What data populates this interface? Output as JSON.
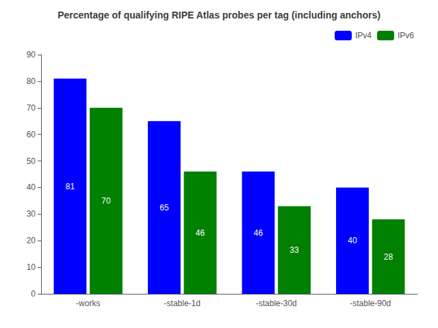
{
  "chart_data": {
    "type": "bar",
    "title": "Percentage of qualifying RIPE Atlas probes per tag (including anchors)",
    "categories": [
      "-works",
      "-stable-1d",
      "-stable-30d",
      "-stable-90d"
    ],
    "series": [
      {
        "name": "IPv4",
        "color": "#0000ff",
        "values": [
          81,
          65,
          46,
          40
        ]
      },
      {
        "name": "IPv6",
        "color": "#008000",
        "values": [
          70,
          46,
          33,
          28
        ]
      }
    ],
    "ylim": [
      0,
      90
    ],
    "yticks": [
      0,
      10,
      20,
      30,
      40,
      50,
      60,
      70,
      80,
      90
    ],
    "grid": false,
    "legend": "upper right",
    "data_labels": true
  }
}
